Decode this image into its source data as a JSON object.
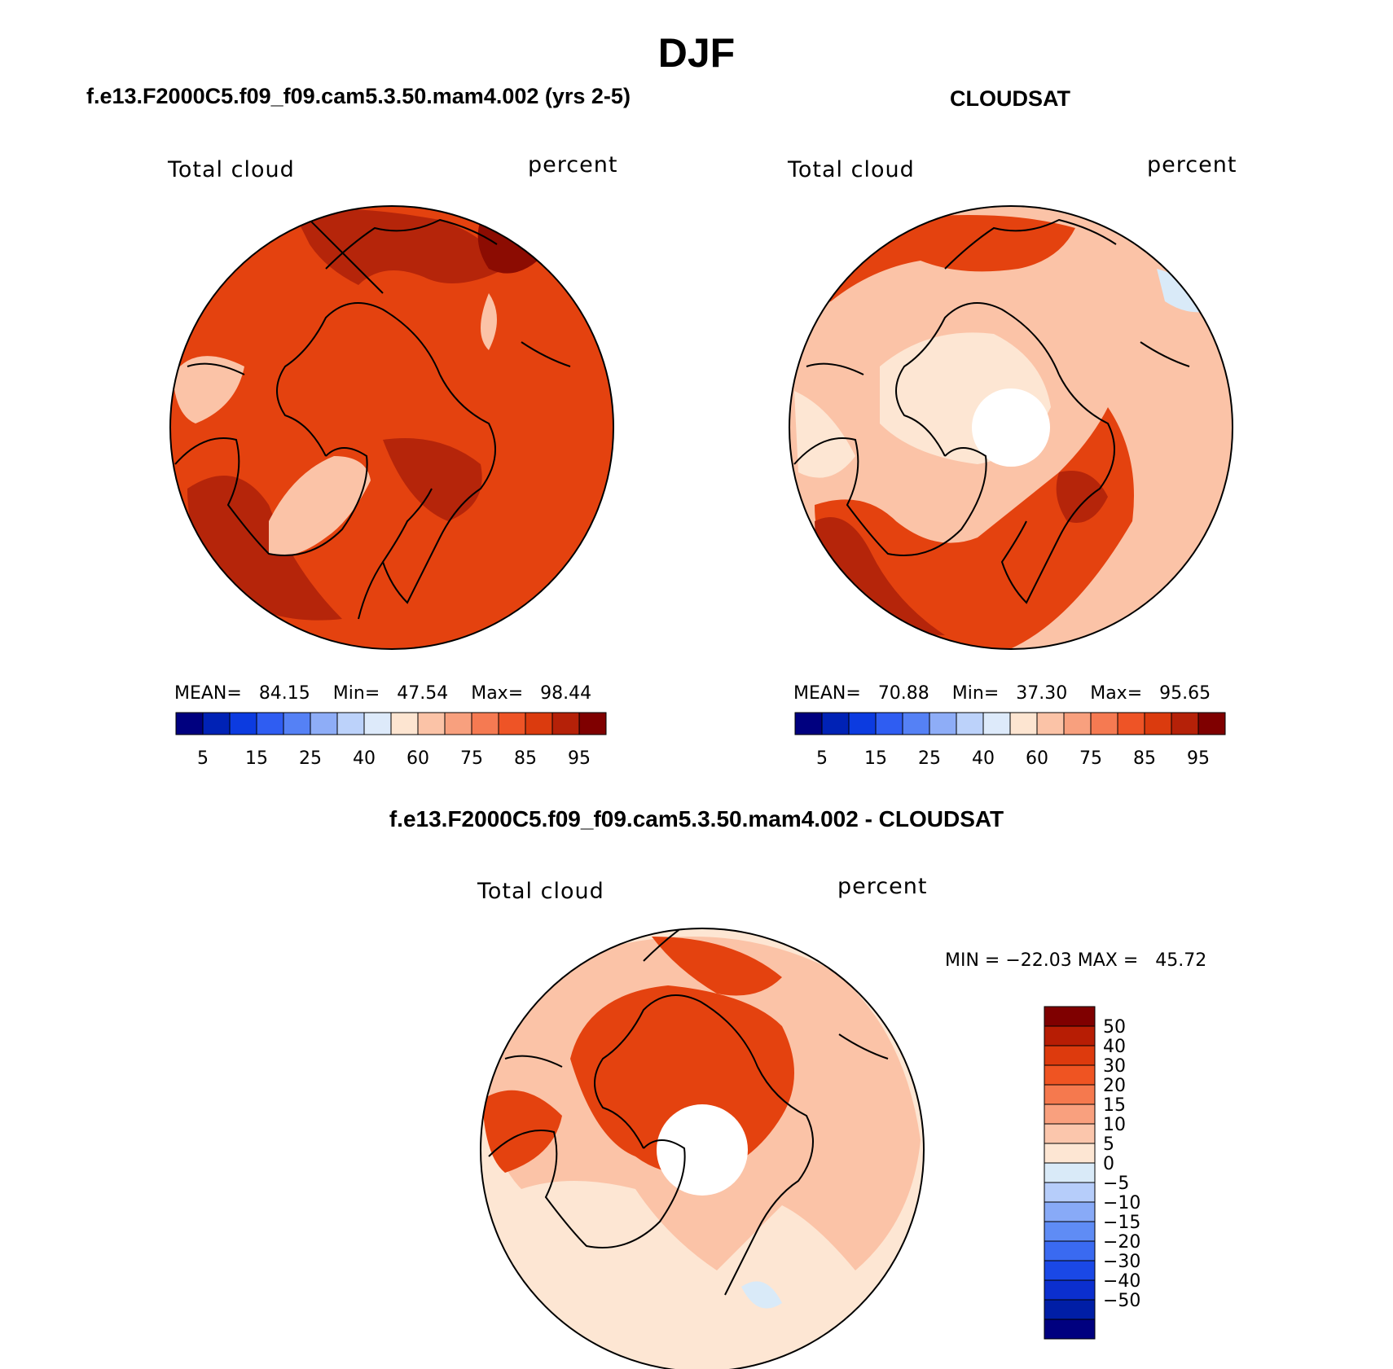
{
  "title": "DJF",
  "panels": [
    {
      "title": "f.e13.F2000C5.f09_f09.cam5.3.50.mam4.002 (yrs 2-5)",
      "field_label": "Total cloud",
      "units": "percent",
      "stats": {
        "mean_label": "MEAN=",
        "mean": "84.15",
        "min_label": "Min=",
        "min": "47.54",
        "max_label": "Max=",
        "max": "98.44"
      }
    },
    {
      "title": "CLOUDSAT",
      "field_label": "Total cloud",
      "units": "percent",
      "stats": {
        "mean_label": "MEAN=",
        "mean": "70.88",
        "min_label": "Min=",
        "min": "37.30",
        "max_label": "Max=",
        "max": "95.65"
      }
    },
    {
      "title": "f.e13.F2000C5.f09_f09.cam5.3.50.mam4.002 - CLOUDSAT",
      "field_label": "Total cloud",
      "units": "percent",
      "stats_text": "MIN = −22.03 MAX =   45.72"
    }
  ],
  "colorbar_abs": {
    "colors": [
      "#00007f",
      "#0022b5",
      "#0c3be0",
      "#2f5df2",
      "#5581f5",
      "#8eadf7",
      "#bcd2fa",
      "#ddeafa",
      "#fde5d1",
      "#fbc3a7",
      "#f8a07e",
      "#f57a52",
      "#ee5426",
      "#db3b0e",
      "#b52108",
      "#7f0000"
    ],
    "labels": [
      "5",
      "15",
      "25",
      "40",
      "60",
      "75",
      "85",
      "95"
    ]
  },
  "colorbar_diff": {
    "colors": [
      "#7f0000",
      "#b71d04",
      "#dd3a0d",
      "#ef5422",
      "#f5794e",
      "#f9a07e",
      "#fbc6ac",
      "#fde6d3",
      "#d9eaf8",
      "#b6cdfa",
      "#88aaf7",
      "#5f8cf5",
      "#3a6af1",
      "#1a48e6",
      "#0b2fcf",
      "#001ea6",
      "#00007f"
    ],
    "labels": [
      "50",
      "40",
      "30",
      "20",
      "15",
      "10",
      "5",
      "0",
      "−5",
      "−10",
      "−15",
      "−20",
      "−30",
      "−40",
      "−50"
    ]
  },
  "map_colors": {
    "base1": "#e4420f",
    "base2": "#fbc3a7",
    "base3": "#fde6d3",
    "blue": "#d9eaf8",
    "dark": "#b5250a",
    "darker": "#8c0c02"
  }
}
